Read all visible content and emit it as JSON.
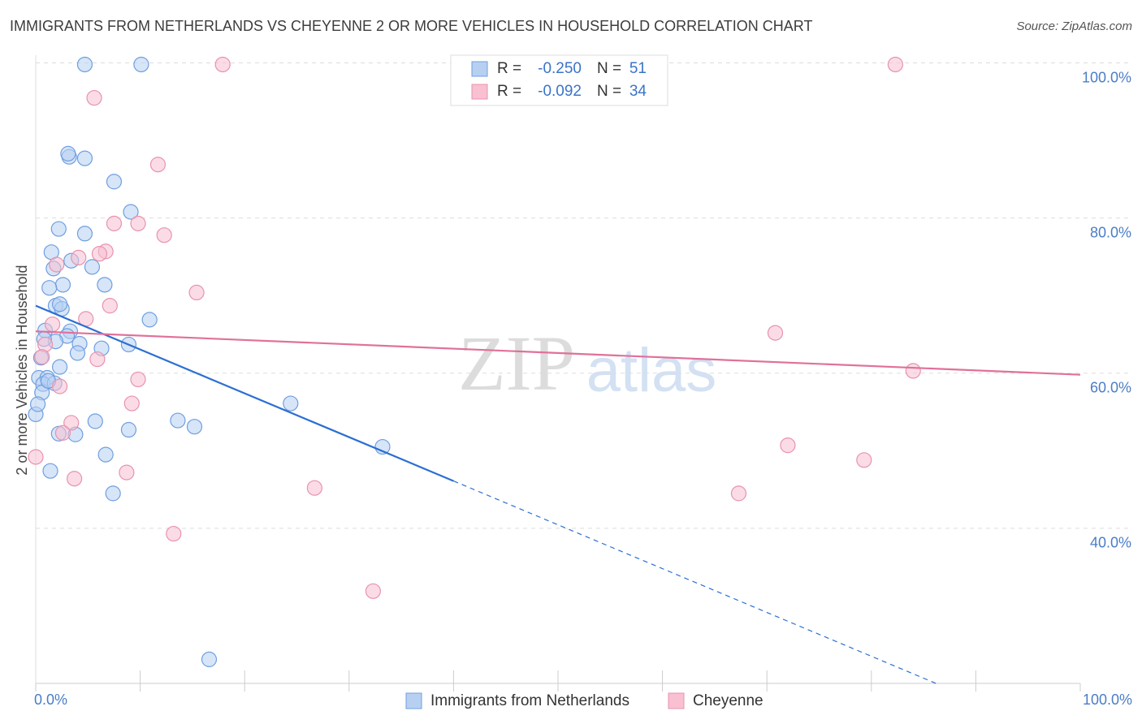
{
  "chart_data": {
    "type": "scatter",
    "title": "IMMIGRANTS FROM NETHERLANDS VS CHEYENNE 2 OR MORE VEHICLES IN HOUSEHOLD CORRELATION CHART",
    "source": "Source: ZipAtlas.com",
    "ylabel": "2 or more Vehicles in Household",
    "watermark": [
      "ZIP",
      "atlas"
    ],
    "xlim": [
      0,
      100
    ],
    "ylim": [
      20,
      101
    ],
    "xticks": [
      {
        "value": 0,
        "label": "0.0%"
      },
      {
        "value": 100,
        "label": "100.0%"
      }
    ],
    "xminor_ticks": [
      10,
      20,
      30,
      40,
      50,
      60,
      70,
      80,
      90
    ],
    "yticks": [
      {
        "value": 100,
        "label": "100.0%"
      },
      {
        "value": 80,
        "label": "80.0%"
      },
      {
        "value": 60,
        "label": "60.0%"
      },
      {
        "value": 40,
        "label": "40.0%"
      }
    ],
    "grid": true,
    "legend_stats": [
      {
        "r_label": "R =",
        "r": "-0.250",
        "n_label": "N =",
        "n": "51"
      },
      {
        "r_label": "R =",
        "r": "-0.092",
        "n_label": "N =",
        "n": "34"
      }
    ],
    "series": [
      {
        "name": "Immigrants from Netherlands",
        "color": "#6f9fe0",
        "fill": "#b7d0f2",
        "line_color": "#2b6fd2",
        "x": [
          4.7,
          10.1,
          3.2,
          4.7,
          3.1,
          7.5,
          9.1,
          2.2,
          4.7,
          1.5,
          3.4,
          5.4,
          1.7,
          2.6,
          1.3,
          6.6,
          1.9,
          2.5,
          2.3,
          10.9,
          0.9,
          3.3,
          3.0,
          4.2,
          1.9,
          0.8,
          6.3,
          4.0,
          8.9,
          2.3,
          0.3,
          1.1,
          0.7,
          1.8,
          0.6,
          0,
          24.4,
          5.7,
          13.6,
          15.2,
          8.9,
          2.2,
          3.8,
          33.2,
          6.7,
          1.4,
          7.4,
          16.6,
          0.5,
          1.2,
          0.2
        ],
        "values": [
          99.8,
          99.8,
          87.9,
          87.7,
          88.3,
          84.7,
          80.8,
          78.6,
          78.0,
          75.6,
          74.5,
          73.7,
          73.5,
          71.4,
          71.0,
          71.4,
          68.7,
          68.3,
          68.9,
          66.9,
          65.5,
          65.4,
          64.8,
          63.8,
          64.1,
          64.4,
          63.2,
          62.6,
          63.7,
          60.8,
          59.4,
          59.4,
          58.6,
          58.7,
          57.5,
          54.7,
          56.1,
          53.8,
          53.9,
          53.1,
          52.7,
          52.2,
          52.1,
          50.5,
          49.5,
          47.4,
          44.5,
          23.1,
          62.0,
          59.0,
          56.0
        ],
        "trend": {
          "x0": 0,
          "y0": 68.7,
          "x1": 40,
          "y1": 46.1,
          "extend": true
        }
      },
      {
        "name": "Cheyenne",
        "color": "#e893ad",
        "fill": "#f8c0d1",
        "line_color": "#e0719a",
        "x": [
          17.9,
          82.3,
          5.6,
          11.7,
          7.5,
          9.8,
          12.3,
          6.7,
          6.1,
          4.1,
          2.0,
          15.4,
          7.1,
          4.8,
          1.6,
          70.8,
          0.9,
          5.9,
          84.0,
          9.8,
          2.3,
          9.2,
          3.4,
          2.6,
          72.0,
          0,
          79.3,
          8.7,
          3.7,
          26.7,
          67.3,
          13.2,
          32.3,
          0.6
        ],
        "values": [
          99.8,
          99.8,
          95.5,
          86.9,
          79.3,
          79.3,
          77.8,
          75.7,
          75.4,
          74.9,
          74.0,
          70.4,
          68.7,
          67.0,
          66.3,
          65.2,
          63.7,
          61.8,
          60.3,
          59.2,
          58.3,
          56.1,
          53.6,
          52.3,
          50.7,
          49.2,
          48.8,
          47.2,
          46.4,
          45.2,
          44.5,
          39.3,
          31.9,
          62.1
        ],
        "trend": {
          "x0": 0,
          "y0": 65.4,
          "x1": 100,
          "y1": 59.8,
          "extend": false
        }
      }
    ]
  }
}
